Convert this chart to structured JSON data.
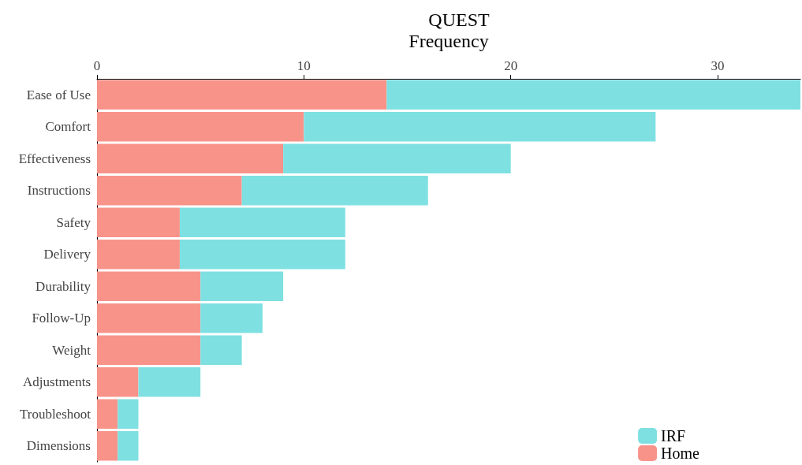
{
  "chart_data": {
    "type": "bar",
    "orientation": "horizontal",
    "stacked": true,
    "title": "QUEST",
    "xlabel": "Frequency",
    "categories": [
      "Ease of Use",
      "Comfort",
      "Effectiveness",
      "Instructions",
      "Safety",
      "Delivery",
      "Durability",
      "Follow-Up",
      "Weight",
      "Adjustments",
      "Troubleshoot",
      "Dimensions"
    ],
    "series": [
      {
        "name": "Home",
        "color": "#f8938a",
        "values": [
          14,
          10,
          9,
          7,
          4,
          4,
          5,
          5,
          5,
          2,
          1,
          1
        ]
      },
      {
        "name": "IRF",
        "color": "#7fe0e1",
        "values": [
          20,
          17,
          11,
          9,
          8,
          8,
          4,
          3,
          2,
          3,
          1,
          1
        ]
      }
    ],
    "xlim": [
      0,
      34
    ],
    "xticks": [
      0,
      10,
      20,
      30
    ],
    "grid": false,
    "legend": "bottom right"
  }
}
